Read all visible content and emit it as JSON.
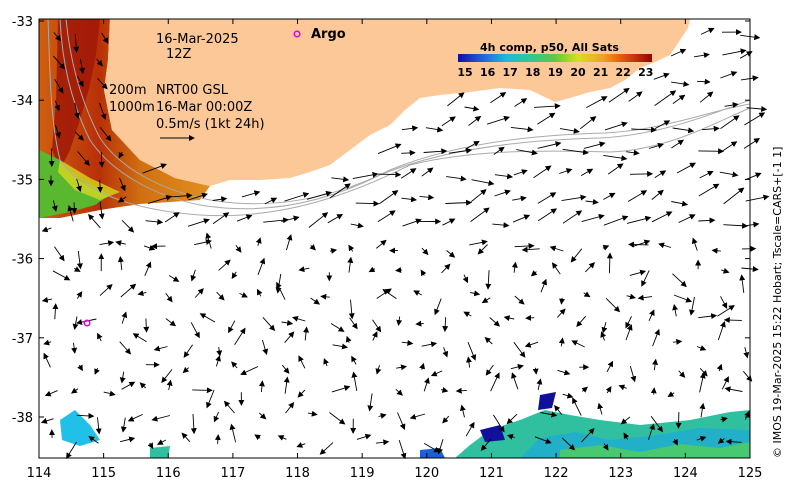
{
  "map": {
    "x_ticks": [
      "114",
      "115",
      "116",
      "117",
      "118",
      "119",
      "120",
      "121",
      "122",
      "123",
      "124",
      "125"
    ],
    "y_ticks": [
      "-33",
      "-34",
      "-35",
      "-36",
      "-37",
      "-38"
    ],
    "date_line1": "16-Mar-2025",
    "date_line2": "12Z",
    "depth_line1": "200m",
    "depth_line2": "1000m",
    "source_line1": "NRT00 GSL",
    "source_line2": "16-Mar 00:00Z",
    "scale_label": "0.5m/s (1kt 24h)",
    "argo_label": "Argo",
    "colorbar_title": "4h comp, p50, All Sats",
    "colorbar_ticks": [
      "15",
      "16",
      "17",
      "18",
      "19",
      "20",
      "21",
      "22",
      "23"
    ],
    "side_credit": "© IMOS 19-Mar-2025 15:22 Hobart; Tscale=CARS+[-1 1]",
    "colors": {
      "land": "#FDC898",
      "argo": "#E000E0",
      "contour": "#AAAAAA"
    }
  }
}
